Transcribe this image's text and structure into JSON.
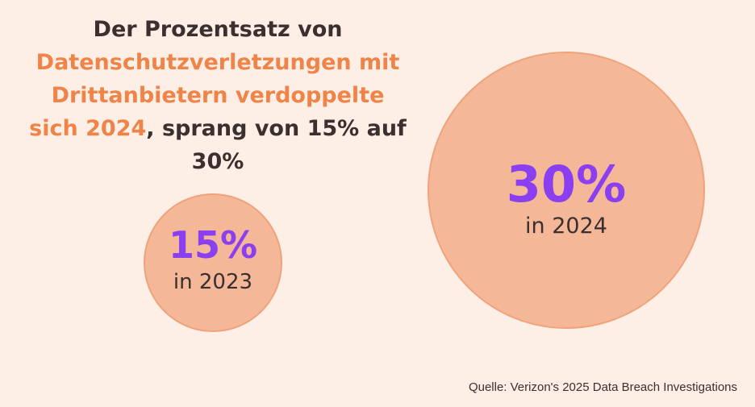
{
  "headline": {
    "part1": "Der Prozentsatz von",
    "part2": "Datenschutzverletzungen mit Drittanbietern verdoppelte sich 2024",
    "part3": ", sprang von 15% auf 30%"
  },
  "chart_data": {
    "type": "bubble",
    "title": "Der Prozentsatz von Datenschutzverletzungen mit Drittanbietern verdoppelte sich 2024, sprang von 15% auf 30%",
    "categories": [
      "2023",
      "2024"
    ],
    "values": [
      15,
      30
    ],
    "unit": "%",
    "bubbles": [
      {
        "value": 15,
        "value_label": "15%",
        "year_label": "in 2023"
      },
      {
        "value": 30,
        "value_label": "30%",
        "year_label": "in 2024"
      }
    ],
    "colors": {
      "bubble_fill": "#f4b898",
      "value_text": "#8a3ff0",
      "accent_text": "#ee8448"
    }
  },
  "source": "Quelle: Verizon's 2025 Data Breach Investigations"
}
